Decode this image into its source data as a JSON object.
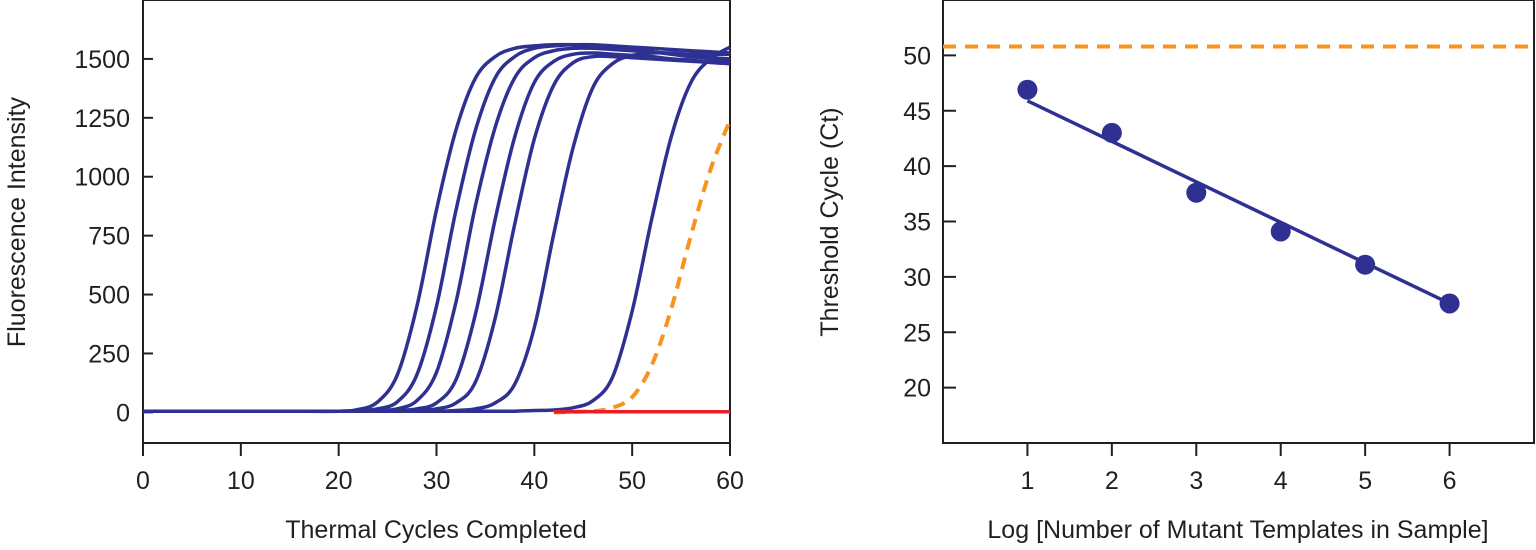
{
  "chart_data": [
    {
      "type": "line",
      "title": "",
      "xlabel": "Thermal Cycles Completed",
      "ylabel": "Fluorescence Intensity",
      "xlim": [
        0,
        60
      ],
      "ylim": [
        -130,
        1750
      ],
      "xticks": [
        "0",
        "10",
        "20",
        "30",
        "40",
        "50",
        "60"
      ],
      "yticks": [
        "0",
        "250",
        "500",
        "750",
        "1000",
        "1250",
        "1500"
      ],
      "grid": false,
      "legend": "none",
      "x": [
        0,
        5,
        10,
        15,
        20,
        22,
        24,
        26,
        28,
        30,
        32,
        34,
        36,
        38,
        40,
        42,
        44,
        46,
        48,
        50,
        52,
        54,
        56,
        58,
        60
      ],
      "series": [
        {
          "style": "solid",
          "color": "#2e3192",
          "values": [
            5,
            5,
            5,
            5,
            5,
            12,
            45,
            160,
            450,
            860,
            1200,
            1420,
            1510,
            1545,
            1555,
            1560,
            1560,
            1555,
            1545,
            1540,
            1530,
            1520,
            1510,
            1505,
            1500
          ]
        },
        {
          "style": "solid",
          "color": "#2e3192",
          "values": [
            5,
            5,
            5,
            5,
            5,
            7,
            15,
            45,
            160,
            450,
            860,
            1200,
            1420,
            1510,
            1545,
            1555,
            1560,
            1560,
            1555,
            1550,
            1545,
            1540,
            1535,
            1530,
            1525
          ]
        },
        {
          "style": "solid",
          "color": "#2e3192",
          "values": [
            5,
            5,
            5,
            5,
            5,
            5,
            8,
            15,
            50,
            170,
            470,
            880,
            1210,
            1420,
            1505,
            1535,
            1545,
            1545,
            1540,
            1535,
            1530,
            1520,
            1510,
            1500,
            1490
          ]
        },
        {
          "style": "solid",
          "color": "#2e3192",
          "values": [
            5,
            5,
            5,
            5,
            5,
            5,
            5,
            8,
            15,
            40,
            140,
            420,
            820,
            1170,
            1400,
            1490,
            1520,
            1525,
            1520,
            1515,
            1510,
            1500,
            1495,
            1485,
            1480
          ]
        },
        {
          "style": "solid",
          "color": "#2e3192",
          "values": [
            5,
            5,
            5,
            5,
            5,
            5,
            5,
            5,
            8,
            15,
            40,
            130,
            400,
            800,
            1160,
            1390,
            1485,
            1510,
            1510,
            1505,
            1500,
            1495,
            1490,
            1485,
            1480
          ]
        },
        {
          "style": "solid",
          "color": "#2e3192",
          "values": [
            5,
            5,
            5,
            5,
            5,
            5,
            5,
            5,
            5,
            5,
            8,
            15,
            40,
            120,
            360,
            760,
            1130,
            1380,
            1480,
            1515,
            1525,
            1525,
            1520,
            1520,
            1520
          ]
        },
        {
          "style": "solid",
          "color": "#2e3192",
          "values": [
            5,
            5,
            5,
            5,
            5,
            5,
            5,
            5,
            5,
            5,
            5,
            5,
            5,
            5,
            8,
            10,
            20,
            50,
            150,
            430,
            820,
            1170,
            1400,
            1500,
            1550
          ]
        },
        {
          "style": "dashed",
          "color": "#f7941d",
          "values": [
            null,
            null,
            null,
            null,
            null,
            null,
            null,
            null,
            null,
            null,
            null,
            null,
            null,
            null,
            null,
            0,
            2,
            5,
            20,
            65,
            200,
            440,
            750,
            1030,
            1240
          ]
        },
        {
          "style": "solid",
          "color": "#ed1c24",
          "values": [
            null,
            null,
            null,
            null,
            null,
            null,
            null,
            null,
            null,
            null,
            null,
            null,
            null,
            null,
            null,
            2,
            3,
            3,
            3,
            3,
            3,
            3,
            3,
            3,
            3
          ]
        }
      ]
    },
    {
      "type": "scatter",
      "title": "",
      "xlabel": "Log [Number of Mutant Templates in Sample]",
      "ylabel": "Threshold Cycle (Ct)",
      "xlim": [
        0,
        7
      ],
      "ylim": [
        15,
        55
      ],
      "xticks": [
        "1",
        "2",
        "3",
        "4",
        "5",
        "6"
      ],
      "yticks": [
        "20",
        "25",
        "30",
        "35",
        "40",
        "45",
        "50"
      ],
      "grid": false,
      "legend": "none",
      "points": [
        {
          "x": 1,
          "y": 46.9
        },
        {
          "x": 2,
          "y": 43.0
        },
        {
          "x": 3,
          "y": 37.6
        },
        {
          "x": 4,
          "y": 34.1
        },
        {
          "x": 5,
          "y": 31.1
        },
        {
          "x": 6,
          "y": 27.6
        }
      ],
      "point_color": "#2e3192",
      "fit_line": {
        "x": [
          1,
          6
        ],
        "y": [
          45.9,
          27.6
        ],
        "color": "#2e3192"
      },
      "threshold_line": {
        "y": 50.8,
        "style": "dashed",
        "color": "#f7941d"
      }
    }
  ]
}
